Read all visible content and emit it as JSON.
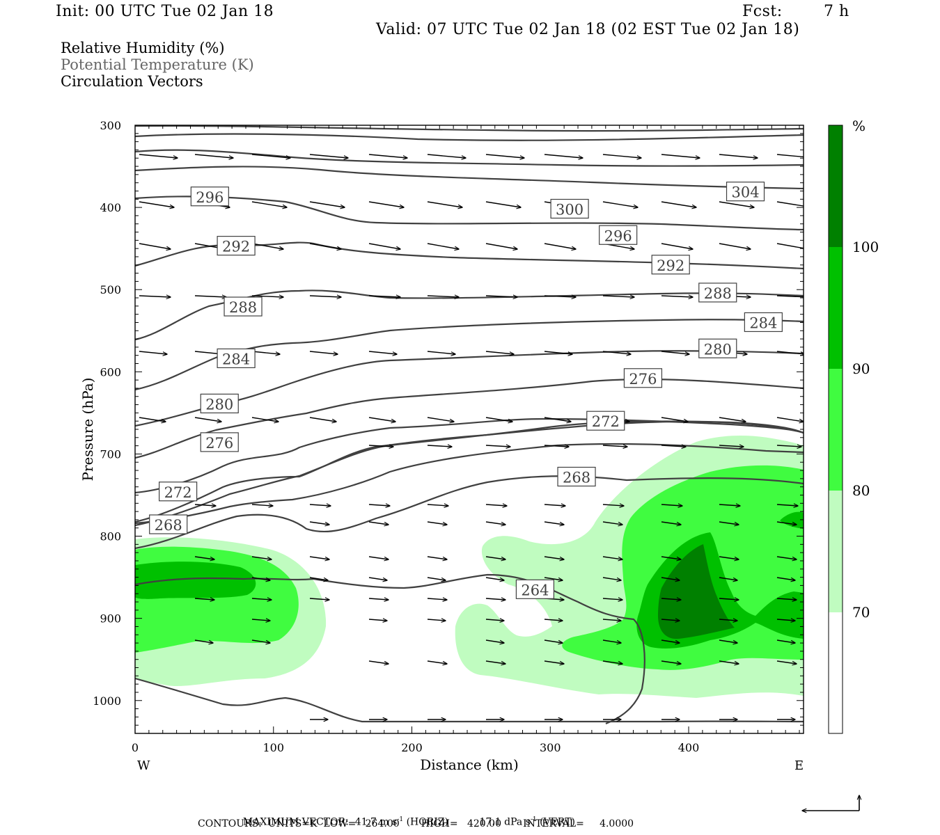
{
  "header": {
    "init": "Init: 00 UTC Tue 02 Jan 18",
    "fcst_label": "Fcst:",
    "fcst_value": "7 h",
    "valid": "Valid: 07 UTC Tue 02 Jan 18 (02 EST Tue 02 Jan 18)"
  },
  "legend": {
    "rh": "Relative Humidity (%)",
    "theta": "Potential Temperature (K)",
    "vectors": "Circulation Vectors"
  },
  "colors": {
    "c70_80": "#c0fcc0",
    "c80_90": "#40fc40",
    "c90_100": "#00c000",
    "c100": "#008000",
    "contour": "#404040",
    "theta_legend": "#666666"
  },
  "chart_data": {
    "type": "cross-section",
    "xlabel": "Distance (km)",
    "ylabel": "Pressure (hPa)",
    "xlim": [
      0,
      483
    ],
    "ylim": [
      1040,
      300
    ],
    "x_ticks": [
      "0",
      "100",
      "200",
      "300",
      "400"
    ],
    "y_ticks": [
      "300",
      "400",
      "500",
      "600",
      "700",
      "800",
      "900",
      "1000"
    ],
    "x_end_labels": {
      "left": "W",
      "right": "E"
    },
    "colorbar": {
      "unit": "%",
      "levels": [
        "70",
        "80",
        "90",
        "100"
      ]
    },
    "isentrope_labels": [
      {
        "text": "296",
        "x": 54,
        "p": 387
      },
      {
        "text": "300",
        "x": 314,
        "p": 402
      },
      {
        "text": "304",
        "x": 441,
        "p": 381
      },
      {
        "text": "292",
        "x": 73,
        "p": 447
      },
      {
        "text": "296",
        "x": 349,
        "p": 434
      },
      {
        "text": "292",
        "x": 387,
        "p": 470
      },
      {
        "text": "288",
        "x": 78,
        "p": 521
      },
      {
        "text": "288",
        "x": 421,
        "p": 504
      },
      {
        "text": "284",
        "x": 454,
        "p": 540
      },
      {
        "text": "284",
        "x": 73,
        "p": 584
      },
      {
        "text": "280",
        "x": 421,
        "p": 572
      },
      {
        "text": "276",
        "x": 367,
        "p": 608
      },
      {
        "text": "280",
        "x": 61,
        "p": 639
      },
      {
        "text": "272",
        "x": 340,
        "p": 660
      },
      {
        "text": "276",
        "x": 61,
        "p": 686
      },
      {
        "text": "268",
        "x": 319,
        "p": 728
      },
      {
        "text": "272",
        "x": 31,
        "p": 746
      },
      {
        "text": "268",
        "x": 24,
        "p": 786
      },
      {
        "text": "264",
        "x": 289,
        "p": 865
      }
    ],
    "footer": {
      "max_vector_prefix": "MAXIMUM VECTOR:",
      "horiz_value": "41.7 m s",
      "horiz_exp": "-1",
      "horiz_suffix": "(HORIZ)",
      "vert_value": "17.1 dPa s",
      "vert_exp": "-1",
      "vert_suffix": "(VERT)",
      "contours": "CONTOURS:  UNITS=K  LOW=   264.00       HIGH=   420.00       INTERVAL=     4.0000"
    }
  }
}
